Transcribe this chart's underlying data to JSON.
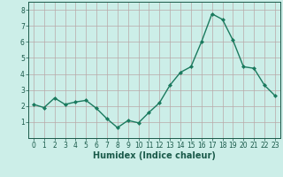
{
  "x": [
    0,
    1,
    2,
    3,
    4,
    5,
    6,
    7,
    8,
    9,
    10,
    11,
    12,
    13,
    14,
    15,
    16,
    17,
    18,
    19,
    20,
    21,
    22,
    23
  ],
  "y": [
    2.1,
    1.9,
    2.5,
    2.1,
    2.25,
    2.35,
    1.85,
    1.2,
    0.65,
    1.1,
    0.95,
    1.6,
    2.2,
    3.3,
    4.1,
    4.45,
    6.0,
    7.75,
    7.4,
    6.1,
    4.45,
    4.35,
    3.3,
    2.65
  ],
  "line_color": "#1a7a5e",
  "marker": "D",
  "marker_size": 2.0,
  "bg_color": "#cceee8",
  "plot_bg_color": "#cceee8",
  "grid_color": "#b8a8a8",
  "xlabel": "Humidex (Indice chaleur)",
  "ylim": [
    0,
    8.5
  ],
  "xlim": [
    -0.5,
    23.5
  ],
  "yticks": [
    1,
    2,
    3,
    4,
    5,
    6,
    7,
    8
  ],
  "xticks": [
    0,
    1,
    2,
    3,
    4,
    5,
    6,
    7,
    8,
    9,
    10,
    11,
    12,
    13,
    14,
    15,
    16,
    17,
    18,
    19,
    20,
    21,
    22,
    23
  ],
  "tick_color": "#1a5a4a",
  "label_color": "#1a5a4a",
  "xlabel_fontsize": 7.0,
  "tick_fontsize": 5.5,
  "linewidth": 1.0
}
